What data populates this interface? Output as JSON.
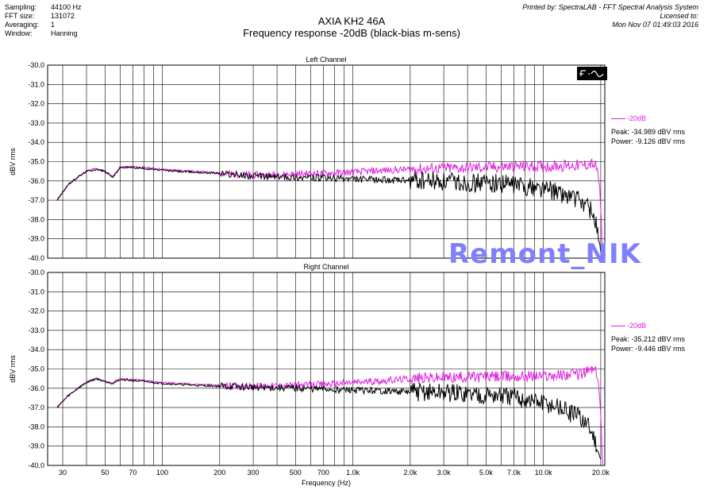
{
  "header": {
    "settings": [
      {
        "label": "Sampling:",
        "value": "44100 Hz"
      },
      {
        "label": "FFT size:",
        "value": "131072"
      },
      {
        "label": "Averaging:",
        "value": "1"
      },
      {
        "label": "Window:",
        "value": "Hanning"
      }
    ],
    "title": "AXIA KH2 46A",
    "subtitle": "Frequency response -20dB (black-bias m-sens)",
    "printed_by": "Printed by: SpectraLAB - FFT Spectral Analysis System",
    "licensed_to": "Licensed to:",
    "timestamp": "Mon Nov 07 01:49:03 2016"
  },
  "watermark": "Remont_NIK",
  "colors": {
    "magenta": "#e020e0",
    "black": "#000000",
    "watermark": "#8080ff"
  },
  "icon": "spectrum-analyzer-icon",
  "chart_data": [
    {
      "type": "line",
      "title": "Left Channel",
      "xlabel": "",
      "ylabel": "dBV rms",
      "xscale": "log",
      "xlim": [
        25,
        21000
      ],
      "ylim": [
        -40.0,
        -30.0
      ],
      "y_ticks": [
        "-30.0",
        "-31.0",
        "-32.0",
        "-33.0",
        "-34.0",
        "-35.0",
        "-36.0",
        "-37.0",
        "-38.0",
        "-39.0",
        "-40.0"
      ],
      "legend": {
        "name": "-20dB",
        "peak": "Peak: -34.989 dBV rms",
        "power": "Power: -9.126 dBV rms"
      },
      "series": [
        {
          "name": "-20dB",
          "color": "#e020e0",
          "x": [
            28,
            32,
            36,
            40,
            45,
            50,
            55,
            60,
            70,
            80,
            100,
            150,
            200,
            300,
            500,
            700,
            1000,
            1500,
            2000,
            3000,
            5000,
            7000,
            10000,
            13000,
            16000,
            18000,
            19000,
            19500,
            20000,
            20500
          ],
          "y": [
            -37.0,
            -36.2,
            -35.8,
            -35.5,
            -35.35,
            -35.5,
            -35.8,
            -35.3,
            -35.25,
            -35.3,
            -35.4,
            -35.5,
            -35.6,
            -35.7,
            -35.65,
            -35.6,
            -35.55,
            -35.45,
            -35.4,
            -35.35,
            -35.3,
            -35.25,
            -35.25,
            -35.2,
            -35.2,
            -35.1,
            -35.3,
            -35.8,
            -37.5,
            -39.9
          ]
        },
        {
          "name": "",
          "color": "#000000",
          "x": [
            28,
            32,
            36,
            40,
            45,
            50,
            55,
            60,
            70,
            80,
            100,
            150,
            200,
            300,
            500,
            700,
            1000,
            1500,
            2000,
            3000,
            5000,
            7000,
            10000,
            12000,
            14000,
            16000,
            17000,
            18000,
            19000,
            20000
          ],
          "y": [
            -37.0,
            -36.2,
            -35.8,
            -35.5,
            -35.4,
            -35.5,
            -35.8,
            -35.3,
            -35.3,
            -35.35,
            -35.45,
            -35.55,
            -35.6,
            -35.75,
            -35.8,
            -35.85,
            -35.9,
            -35.95,
            -36.0,
            -36.05,
            -36.1,
            -36.2,
            -36.4,
            -36.6,
            -36.8,
            -37.1,
            -37.3,
            -37.6,
            -38.3,
            -39.8
          ]
        }
      ]
    },
    {
      "type": "line",
      "title": "Right Channel",
      "xlabel": "Frequency (Hz)",
      "ylabel": "dBV rms",
      "xscale": "log",
      "xlim": [
        25,
        21000
      ],
      "ylim": [
        -40.0,
        -30.0
      ],
      "y_ticks": [
        "-30.0",
        "-31.0",
        "-32.0",
        "-33.0",
        "-34.0",
        "-35.0",
        "-36.0",
        "-37.0",
        "-38.0",
        "-39.0",
        "-40.0"
      ],
      "x_ticks": [
        {
          "value": 30,
          "label": "30"
        },
        {
          "value": 50,
          "label": "50"
        },
        {
          "value": 70,
          "label": "70"
        },
        {
          "value": 100,
          "label": "100"
        },
        {
          "value": 200,
          "label": "200"
        },
        {
          "value": 300,
          "label": "300"
        },
        {
          "value": 500,
          "label": "500"
        },
        {
          "value": 700,
          "label": "700"
        },
        {
          "value": 1000,
          "label": "1.0k"
        },
        {
          "value": 2000,
          "label": "2.0k"
        },
        {
          "value": 3000,
          "label": "3.0k"
        },
        {
          "value": 5000,
          "label": "5.0k"
        },
        {
          "value": 7000,
          "label": "7.0k"
        },
        {
          "value": 10000,
          "label": "10.0k"
        },
        {
          "value": 20000,
          "label": "20.0k"
        }
      ],
      "legend": {
        "name": "-20dB",
        "peak": "Peak: -35.212 dBV rms",
        "power": "Power: -9.446 dBV rms"
      },
      "series": [
        {
          "name": "-20dB",
          "color": "#e020e0",
          "x": [
            28,
            32,
            36,
            40,
            45,
            50,
            55,
            60,
            70,
            80,
            100,
            150,
            200,
            300,
            500,
            700,
            1000,
            1500,
            2000,
            3000,
            5000,
            7000,
            10000,
            13000,
            16000,
            18000,
            19000,
            19500,
            20000,
            20500
          ],
          "y": [
            -37.0,
            -36.4,
            -36.0,
            -35.7,
            -35.5,
            -35.65,
            -35.7,
            -35.5,
            -35.55,
            -35.6,
            -35.7,
            -35.8,
            -35.85,
            -35.9,
            -35.85,
            -35.8,
            -35.7,
            -35.6,
            -35.5,
            -35.45,
            -35.4,
            -35.4,
            -35.35,
            -35.3,
            -35.25,
            -35.0,
            -35.2,
            -35.8,
            -37.5,
            -40.0
          ]
        },
        {
          "name": "",
          "color": "#000000",
          "x": [
            28,
            32,
            36,
            40,
            45,
            50,
            55,
            60,
            70,
            80,
            100,
            150,
            200,
            300,
            500,
            700,
            1000,
            1500,
            2000,
            3000,
            5000,
            7000,
            10000,
            12000,
            14000,
            16000,
            17000,
            18000,
            19000,
            20000
          ],
          "y": [
            -37.0,
            -36.4,
            -36.0,
            -35.7,
            -35.5,
            -35.65,
            -35.75,
            -35.55,
            -35.6,
            -35.65,
            -35.75,
            -35.85,
            -35.9,
            -35.95,
            -36.0,
            -36.05,
            -36.1,
            -36.15,
            -36.2,
            -36.25,
            -36.35,
            -36.5,
            -36.8,
            -37.0,
            -37.3,
            -37.6,
            -37.9,
            -38.3,
            -38.9,
            -39.9
          ]
        }
      ]
    }
  ]
}
